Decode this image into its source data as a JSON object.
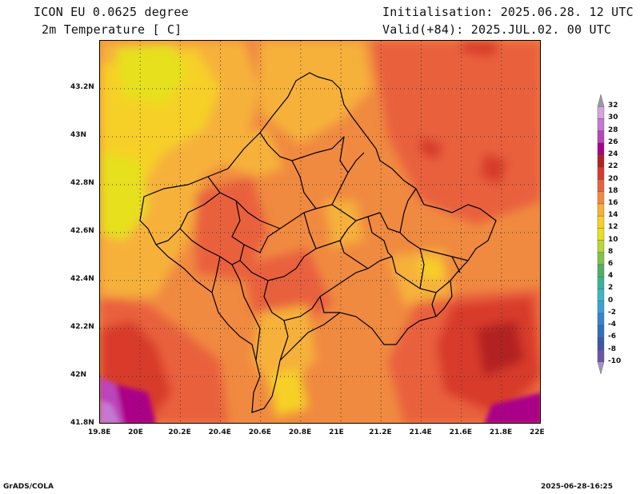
{
  "header": {
    "model": "ICON EU 0.0625 degree",
    "variable": "2m Temperature [ C]",
    "init": "Initialisation: 2025.06.28. 12 UTC",
    "valid": "Valid(+84): 2025.JUL.02. 00 UTC"
  },
  "axes": {
    "x_labels": [
      "19.8E",
      "20E",
      "20.2E",
      "20.4E",
      "20.6E",
      "20.8E",
      "21E",
      "21.2E",
      "21.4E",
      "21.6E",
      "21.8E",
      "22E"
    ],
    "y_labels": [
      "43.2N",
      "43N",
      "42.8N",
      "42.6N",
      "42.4N",
      "42.2N",
      "42N",
      "41.8N"
    ]
  },
  "colorbar": {
    "labels": [
      "32",
      "30",
      "28",
      "26",
      "24",
      "22",
      "20",
      "18",
      "16",
      "14",
      "12",
      "10",
      "8",
      "6",
      "4",
      "2",
      "0",
      "-2",
      "-4",
      "-6",
      "-8",
      "-10"
    ],
    "colors": [
      "#9b9b9b",
      "#d7a2e0",
      "#c478d4",
      "#bb44bb",
      "#aa0088",
      "#b22222",
      "#d83a2a",
      "#e9613c",
      "#f08a40",
      "#f6b13a",
      "#f6d028",
      "#e6e11b",
      "#b9d635",
      "#7ec447",
      "#4fb063",
      "#3bb294",
      "#3bb7c2",
      "#3ba0d6",
      "#2f86cc",
      "#2f6fbd",
      "#3a57a7",
      "#6a55a8",
      "#a88dc8"
    ]
  },
  "footer": {
    "left": "GrADS/COLA",
    "right": "2025-06-28-16:25"
  }
}
